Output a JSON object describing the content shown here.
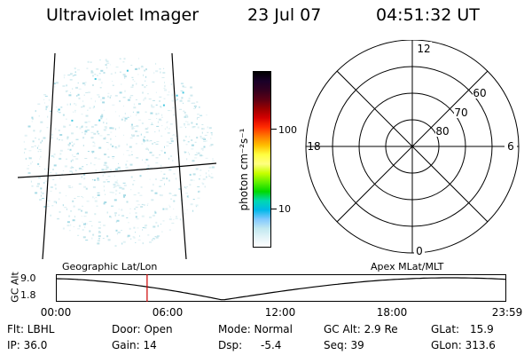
{
  "header": {
    "instrument": "Ultraviolet Imager",
    "date": "23 Jul 07",
    "time": "04:51:32 UT"
  },
  "colorbar": {
    "unit_label": "photon cm⁻²s⁻¹",
    "tick_labels": [
      "100",
      "10"
    ],
    "colors": [
      "#000000",
      "#1a0028",
      "#33001f",
      "#5c0014",
      "#9a0000",
      "#d40000",
      "#ff2b00",
      "#ff7a00",
      "#ffc000",
      "#ffff40",
      "#ffff80",
      "#c8ff00",
      "#60f000",
      "#00d800",
      "#00d8b0",
      "#00b8e8",
      "#80c8ff",
      "#c0e8f0",
      "#e4f4f8",
      "#ffffff"
    ]
  },
  "polar_plot": {
    "clock_labels": [
      "12",
      "18",
      "6",
      "0"
    ],
    "lat_labels": [
      "60",
      "70",
      "80"
    ]
  },
  "timeline": {
    "geo_label": "Geographic Lat/Lon",
    "apex_label": "Apex MLat/MLT",
    "y_axis_label": "GC Alt",
    "y_ticks": [
      "9.0",
      "1.8"
    ],
    "x_ticks": [
      "00:00",
      "06:00",
      "12:00",
      "18:00",
      "23:59"
    ],
    "marker_time_hours": 4.86,
    "marker_color": "#cc0000"
  },
  "footer": {
    "flt": "Flt: LBHL",
    "ip": "IP: 36.0",
    "door": "Door: Open",
    "gain": "Gain: 14",
    "mode": "Mode: Normal",
    "dsp_label": "Dsp:",
    "dsp_value": "-5.4",
    "gc_alt": "GC Alt: 2.9 Re",
    "seq": "Seq: 39",
    "glat_label": "GLat:",
    "glat_value": "15.9",
    "glon": "GLon: 313.6"
  }
}
